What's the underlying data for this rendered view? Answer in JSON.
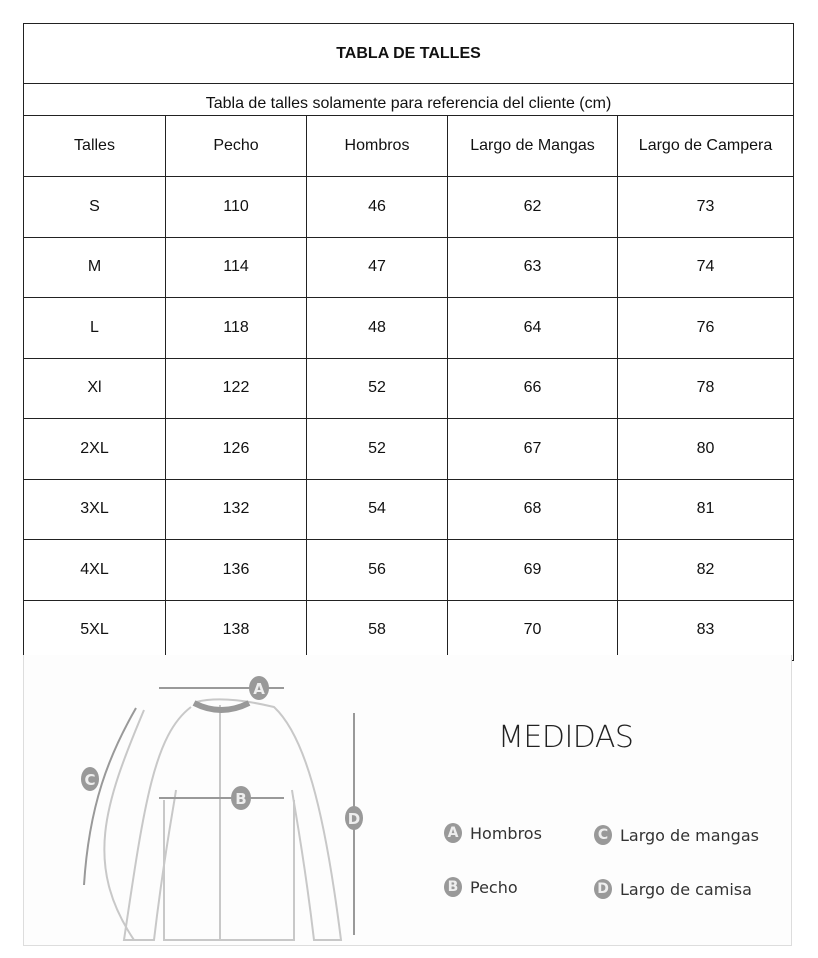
{
  "title": "TABLA DE TALLES",
  "subtitle": "Tabla de talles solamente para referencia del cliente (cm)",
  "headers": [
    "Talles",
    "Pecho",
    "Hombros",
    "Largo de Mangas",
    "Largo de Campera"
  ],
  "rows": [
    [
      "S",
      "110",
      "46",
      "62",
      "73"
    ],
    [
      "M",
      "114",
      "47",
      "63",
      "74"
    ],
    [
      "L",
      "118",
      "48",
      "64",
      "76"
    ],
    [
      "Xl",
      "122",
      "52",
      "66",
      "78"
    ],
    [
      "2XL",
      "126",
      "52",
      "67",
      "80"
    ],
    [
      "3XL",
      "132",
      "54",
      "68",
      "81"
    ],
    [
      "4XL",
      "136",
      "56",
      "69",
      "82"
    ],
    [
      "5XL",
      "138",
      "58",
      "70",
      "83"
    ]
  ],
  "diagram": {
    "heading": "MEDIDAS",
    "labels": [
      "A",
      "B",
      "C",
      "D"
    ],
    "legend": [
      {
        "letter": "A",
        "label": "Hombros"
      },
      {
        "letter": "C",
        "label": "Largo de mangas"
      },
      {
        "letter": "B",
        "label": "Pecho"
      },
      {
        "letter": "D",
        "label": "Largo de camisa"
      }
    ]
  }
}
